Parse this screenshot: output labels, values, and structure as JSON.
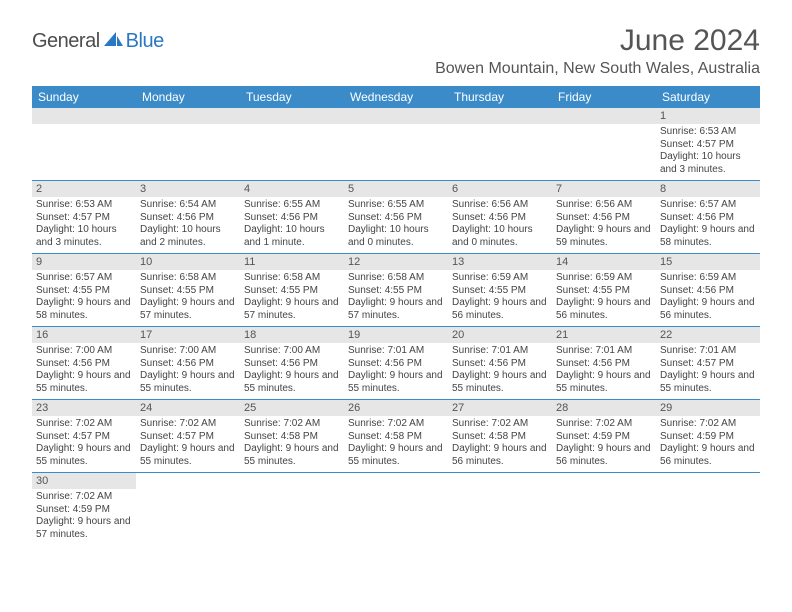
{
  "logo": {
    "text1": "General",
    "text2": "Blue",
    "color1": "#4d4d4d",
    "color2": "#2b78c2"
  },
  "title": "June 2024",
  "location": "Bowen Mountain, New South Wales, Australia",
  "header_bg": "#3b8bc9",
  "header_fg": "#ffffff",
  "daynum_bg": "#e6e6e6",
  "border_color": "#3b8bc9",
  "daysOfWeek": [
    "Sunday",
    "Monday",
    "Tuesday",
    "Wednesday",
    "Thursday",
    "Friday",
    "Saturday"
  ],
  "weeks": [
    [
      null,
      null,
      null,
      null,
      null,
      null,
      {
        "n": "1",
        "sr": "6:53 AM",
        "ss": "4:57 PM",
        "dl": "10 hours and 3 minutes."
      }
    ],
    [
      {
        "n": "2",
        "sr": "6:53 AM",
        "ss": "4:57 PM",
        "dl": "10 hours and 3 minutes."
      },
      {
        "n": "3",
        "sr": "6:54 AM",
        "ss": "4:56 PM",
        "dl": "10 hours and 2 minutes."
      },
      {
        "n": "4",
        "sr": "6:55 AM",
        "ss": "4:56 PM",
        "dl": "10 hours and 1 minute."
      },
      {
        "n": "5",
        "sr": "6:55 AM",
        "ss": "4:56 PM",
        "dl": "10 hours and 0 minutes."
      },
      {
        "n": "6",
        "sr": "6:56 AM",
        "ss": "4:56 PM",
        "dl": "10 hours and 0 minutes."
      },
      {
        "n": "7",
        "sr": "6:56 AM",
        "ss": "4:56 PM",
        "dl": "9 hours and 59 minutes."
      },
      {
        "n": "8",
        "sr": "6:57 AM",
        "ss": "4:56 PM",
        "dl": "9 hours and 58 minutes."
      }
    ],
    [
      {
        "n": "9",
        "sr": "6:57 AM",
        "ss": "4:55 PM",
        "dl": "9 hours and 58 minutes."
      },
      {
        "n": "10",
        "sr": "6:58 AM",
        "ss": "4:55 PM",
        "dl": "9 hours and 57 minutes."
      },
      {
        "n": "11",
        "sr": "6:58 AM",
        "ss": "4:55 PM",
        "dl": "9 hours and 57 minutes."
      },
      {
        "n": "12",
        "sr": "6:58 AM",
        "ss": "4:55 PM",
        "dl": "9 hours and 57 minutes."
      },
      {
        "n": "13",
        "sr": "6:59 AM",
        "ss": "4:55 PM",
        "dl": "9 hours and 56 minutes."
      },
      {
        "n": "14",
        "sr": "6:59 AM",
        "ss": "4:55 PM",
        "dl": "9 hours and 56 minutes."
      },
      {
        "n": "15",
        "sr": "6:59 AM",
        "ss": "4:56 PM",
        "dl": "9 hours and 56 minutes."
      }
    ],
    [
      {
        "n": "16",
        "sr": "7:00 AM",
        "ss": "4:56 PM",
        "dl": "9 hours and 55 minutes."
      },
      {
        "n": "17",
        "sr": "7:00 AM",
        "ss": "4:56 PM",
        "dl": "9 hours and 55 minutes."
      },
      {
        "n": "18",
        "sr": "7:00 AM",
        "ss": "4:56 PM",
        "dl": "9 hours and 55 minutes."
      },
      {
        "n": "19",
        "sr": "7:01 AM",
        "ss": "4:56 PM",
        "dl": "9 hours and 55 minutes."
      },
      {
        "n": "20",
        "sr": "7:01 AM",
        "ss": "4:56 PM",
        "dl": "9 hours and 55 minutes."
      },
      {
        "n": "21",
        "sr": "7:01 AM",
        "ss": "4:56 PM",
        "dl": "9 hours and 55 minutes."
      },
      {
        "n": "22",
        "sr": "7:01 AM",
        "ss": "4:57 PM",
        "dl": "9 hours and 55 minutes."
      }
    ],
    [
      {
        "n": "23",
        "sr": "7:02 AM",
        "ss": "4:57 PM",
        "dl": "9 hours and 55 minutes."
      },
      {
        "n": "24",
        "sr": "7:02 AM",
        "ss": "4:57 PM",
        "dl": "9 hours and 55 minutes."
      },
      {
        "n": "25",
        "sr": "7:02 AM",
        "ss": "4:58 PM",
        "dl": "9 hours and 55 minutes."
      },
      {
        "n": "26",
        "sr": "7:02 AM",
        "ss": "4:58 PM",
        "dl": "9 hours and 55 minutes."
      },
      {
        "n": "27",
        "sr": "7:02 AM",
        "ss": "4:58 PM",
        "dl": "9 hours and 56 minutes."
      },
      {
        "n": "28",
        "sr": "7:02 AM",
        "ss": "4:59 PM",
        "dl": "9 hours and 56 minutes."
      },
      {
        "n": "29",
        "sr": "7:02 AM",
        "ss": "4:59 PM",
        "dl": "9 hours and 56 minutes."
      }
    ],
    [
      {
        "n": "30",
        "sr": "7:02 AM",
        "ss": "4:59 PM",
        "dl": "9 hours and 57 minutes."
      },
      null,
      null,
      null,
      null,
      null,
      null
    ]
  ],
  "labels": {
    "sunrise": "Sunrise: ",
    "sunset": "Sunset: ",
    "daylight": "Daylight: "
  }
}
